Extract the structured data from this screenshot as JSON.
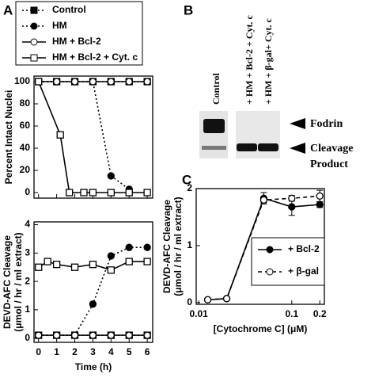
{
  "chart_data": [
    {
      "type": "line",
      "ylabel": "Percent Intact Nuclei",
      "ylim": [
        -5,
        105
      ],
      "yticks": [
        0,
        20,
        40,
        60,
        80,
        100
      ],
      "xlim": [
        -0.25,
        6.3
      ],
      "series": [
        {
          "name": "Control",
          "color": "#000000",
          "line_style": "dotted",
          "marker": "square-filled",
          "x": [
            0,
            1,
            2,
            3,
            4,
            5,
            6
          ],
          "values": [
            100,
            100,
            100,
            100,
            100,
            100,
            100
          ]
        },
        {
          "name": "HM",
          "color": "#000000",
          "line_style": "dotted",
          "marker": "circle-filled",
          "x": [
            0,
            1,
            2,
            3,
            4,
            5
          ],
          "values": [
            100,
            100,
            100,
            100,
            15,
            3
          ]
        },
        {
          "name": "HM + Bcl-2",
          "color": "#000000",
          "line_style": "solid",
          "marker": "circle-open",
          "x": [
            0,
            1,
            2,
            3,
            4,
            5,
            6
          ],
          "values": [
            100,
            100,
            100,
            100,
            100,
            100,
            100
          ]
        },
        {
          "name": "HM + Bcl-2 + Cyt. c",
          "color": "#000000",
          "line_style": "solid",
          "marker": "square-open",
          "x": [
            0,
            1.2,
            1.7,
            2.5,
            3,
            4,
            5,
            6
          ],
          "values": [
            100,
            52,
            0,
            0,
            0,
            0,
            0,
            0
          ]
        }
      ]
    },
    {
      "type": "line",
      "ylabel": [
        "DEVD-AFC Cleavage",
        "(μmol / hr / ml extract)"
      ],
      "xlabel": "Time (h)",
      "ylim": [
        -0.15,
        4.1
      ],
      "yticks": [
        0,
        1,
        2,
        3,
        4
      ],
      "xlim": [
        -0.25,
        6.3
      ],
      "xticks": [
        0,
        1,
        2,
        3,
        4,
        5,
        6
      ],
      "series": [
        {
          "color": "#000000",
          "line_style": "dotted",
          "marker": "square-filled",
          "x": [
            0,
            1,
            2,
            3,
            4,
            5,
            6
          ],
          "values": [
            0.1,
            0.1,
            0.1,
            0.1,
            0.1,
            0.1,
            0.1
          ]
        },
        {
          "color": "#000000",
          "line_style": "dotted",
          "marker": "circle-filled",
          "x": [
            0,
            1,
            2,
            3,
            4,
            5,
            6
          ],
          "values": [
            0.1,
            0.1,
            0.1,
            1.2,
            2.9,
            3.2,
            3.2
          ]
        },
        {
          "color": "#000000",
          "line_style": "solid",
          "marker": "circle-open",
          "x": [
            0,
            1,
            2,
            3,
            4,
            5,
            6
          ],
          "values": [
            0.1,
            0.1,
            0.1,
            0.1,
            0.1,
            0.1,
            0.1
          ]
        },
        {
          "color": "#000000",
          "line_style": "solid",
          "marker": "square-open",
          "x": [
            0,
            0.5,
            1,
            2,
            3,
            4,
            5,
            6
          ],
          "values": [
            2.5,
            2.7,
            2.6,
            2.5,
            2.6,
            2.4,
            2.7,
            2.7
          ]
        }
      ]
    },
    {
      "type": "line",
      "ylabel": [
        "DEVD-AFC Cleavage",
        "(μmol / hr / ml extract)"
      ],
      "xlabel": "[Cytochrome C] (μM)",
      "xlog": true,
      "xlim": [
        0.0094,
        0.224
      ],
      "xticks": [
        0.01,
        0.1,
        0.2
      ],
      "ylim": [
        -0.03,
        2.0
      ],
      "yticks": [
        0,
        1,
        2
      ],
      "series": [
        {
          "name": "+ Bcl-2",
          "color": "#000000",
          "line_style": "solid",
          "marker": "circle-filled",
          "x": [
            0.0125,
            0.02,
            0.05,
            0.1,
            0.2
          ],
          "values": [
            0.05,
            0.07,
            1.83,
            1.68,
            1.72
          ],
          "errors": [
            0,
            0,
            0.1,
            0.15,
            0.05
          ]
        },
        {
          "name": "+ β-gal",
          "color": "#000000",
          "line_style": "dashed",
          "marker": "circle-open",
          "x": [
            0.0125,
            0.02,
            0.05,
            0.1,
            0.2
          ],
          "values": [
            0.05,
            0.07,
            1.8,
            1.83,
            1.87
          ],
          "errors": [
            0,
            0,
            0.05,
            0.05,
            0.1
          ]
        }
      ]
    }
  ],
  "panels": [
    "A",
    "B",
    "C"
  ],
  "blot": {
    "lanes": [
      "Control",
      "+ HM + Bcl-2 + Cyt. c",
      "+ HM + β-gal+ Cyt. c"
    ],
    "bands": [
      [
        "Fodrin"
      ],
      [
        "Cleavage",
        "Product"
      ]
    ]
  }
}
